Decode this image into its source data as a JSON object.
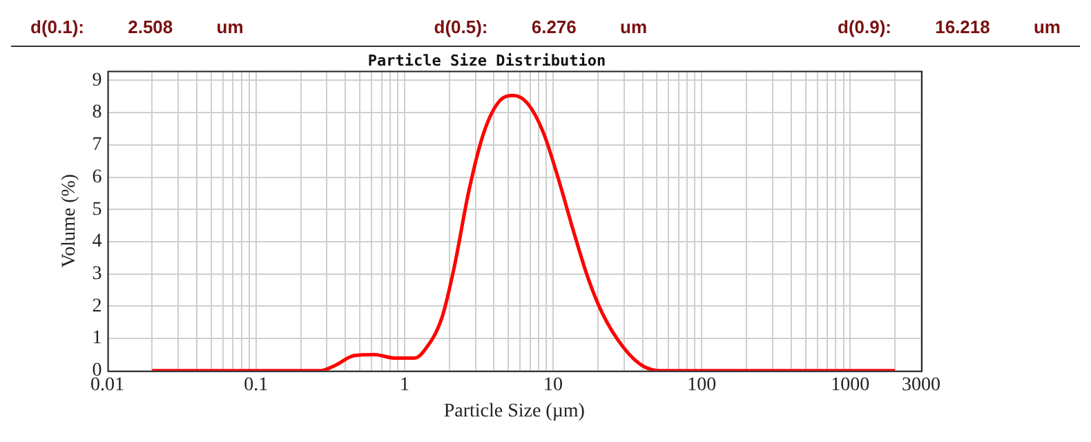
{
  "chart_data": {
    "type": "line",
    "title": "Particle Size Distribution",
    "xlabel": "Particle Size (µm)",
    "ylabel": "Volume (%)",
    "annotations": [
      "d(0.1): 2.508 um",
      "d(0.5): 6.276 um",
      "d(0.9): 16.218 um"
    ],
    "log": "x",
    "grid": true,
    "legend": false,
    "marker": "none",
    "line_style": "solid",
    "xlim": [
      0.01,
      3000
    ],
    "ylim": [
      0,
      9.3
    ],
    "xticks": [
      0.01,
      {
        "value": 0.02,
        "label": null
      },
      {
        "value": 0.03,
        "label": null
      },
      {
        "value": 0.04,
        "label": null
      },
      {
        "value": 0.05,
        "label": null
      },
      {
        "value": 0.06,
        "label": null
      },
      {
        "value": 0.07,
        "label": null
      },
      {
        "value": 0.08,
        "label": null
      },
      {
        "value": 0.09,
        "label": null
      },
      0.1,
      {
        "value": 0.2,
        "label": null
      },
      {
        "value": 0.3,
        "label": null
      },
      {
        "value": 0.4,
        "label": null
      },
      {
        "value": 0.5,
        "label": null
      },
      {
        "value": 0.6,
        "label": null
      },
      {
        "value": 0.7,
        "label": null
      },
      {
        "value": 0.8,
        "label": null
      },
      {
        "value": 0.9,
        "label": null
      },
      1,
      {
        "value": 2,
        "label": null
      },
      {
        "value": 3,
        "label": null
      },
      {
        "value": 4,
        "label": null
      },
      {
        "value": 5,
        "label": null
      },
      {
        "value": 6,
        "label": null
      },
      {
        "value": 7,
        "label": null
      },
      {
        "value": 8,
        "label": null
      },
      {
        "value": 9,
        "label": null
      },
      10,
      {
        "value": 20,
        "label": null
      },
      {
        "value": 30,
        "label": null
      },
      {
        "value": 40,
        "label": null
      },
      {
        "value": 50,
        "label": null
      },
      {
        "value": 60,
        "label": null
      },
      {
        "value": 70,
        "label": null
      },
      {
        "value": 80,
        "label": null
      },
      {
        "value": 90,
        "label": null
      },
      100,
      {
        "value": 200,
        "label": null
      },
      {
        "value": 300,
        "label": null
      },
      {
        "value": 400,
        "label": null
      },
      {
        "value": 500,
        "label": null
      },
      {
        "value": 600,
        "label": null
      },
      {
        "value": 700,
        "label": null
      },
      {
        "value": 800,
        "label": null
      },
      {
        "value": 900,
        "label": null
      },
      1000,
      {
        "value": 2000,
        "label": null
      },
      3000
    ],
    "yticks": [
      0,
      1,
      2,
      3,
      4,
      5,
      6,
      7,
      8,
      9
    ],
    "series": [
      {
        "color": "#ff0000",
        "x": [
          0.02,
          0.27,
          0.34,
          0.46,
          0.63,
          0.86,
          1.17,
          1.36,
          1.78,
          2.15,
          2.71,
          3.42,
          4.3,
          5.41,
          6.8,
          8.58,
          10.8,
          13.6,
          17.1,
          21.5,
          29.3,
          39.8,
          54,
          2000
        ],
        "values": [
          0,
          0,
          0.16,
          0.47,
          0.5,
          0.39,
          0.39,
          0.63,
          1.63,
          3.17,
          5.58,
          7.39,
          8.33,
          8.53,
          8.26,
          7.39,
          5.98,
          4.38,
          2.9,
          1.77,
          0.76,
          0.16,
          0,
          0
        ]
      }
    ]
  }
}
